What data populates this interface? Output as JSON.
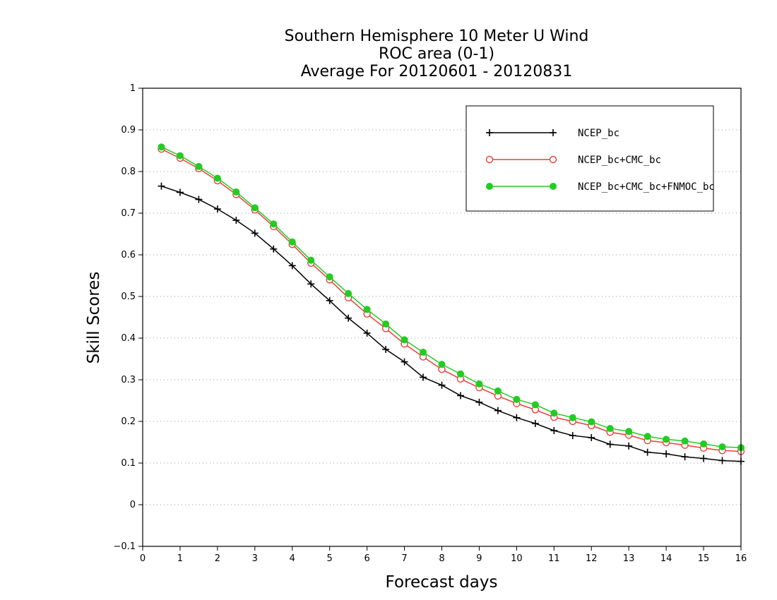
{
  "chart_data": {
    "type": "line",
    "title_lines": [
      "Southern Hemisphere 10 Meter U Wind",
      "ROC area (0-1)",
      "Average For 20120601 - 20120831"
    ],
    "xlabel": "Forecast days",
    "ylabel": "Skill Scores",
    "xlim": [
      0,
      16
    ],
    "ylim": [
      -0.1,
      1
    ],
    "xticks": [
      0,
      1,
      2,
      3,
      4,
      5,
      6,
      7,
      8,
      9,
      10,
      11,
      12,
      13,
      14,
      15,
      16
    ],
    "yticks": [
      -0.1,
      0,
      0.1,
      0.2,
      0.3,
      0.4,
      0.5,
      0.6,
      0.7,
      0.8,
      0.9,
      1
    ],
    "grid": "horizontal-dotted",
    "legend_position": "top-right",
    "x": [
      0.5,
      1,
      1.5,
      2,
      2.5,
      3,
      3.5,
      4,
      4.5,
      5,
      5.5,
      6,
      6.5,
      7,
      7.5,
      8,
      8.5,
      9,
      9.5,
      10,
      10.5,
      11,
      11.5,
      12,
      12.5,
      13,
      13.5,
      14,
      14.5,
      15,
      15.5,
      16
    ],
    "series": [
      {
        "name": "NCEP_bc",
        "color": "#000000",
        "marker": "plus",
        "values": [
          0.765,
          0.75,
          0.733,
          0.71,
          0.683,
          0.652,
          0.614,
          0.574,
          0.53,
          0.49,
          0.448,
          0.412,
          0.373,
          0.343,
          0.306,
          0.287,
          0.262,
          0.246,
          0.226,
          0.209,
          0.195,
          0.178,
          0.166,
          0.161,
          0.145,
          0.141,
          0.126,
          0.122,
          0.115,
          0.111,
          0.106,
          0.104
        ]
      },
      {
        "name": "NCEP_bc+CMC_bc",
        "color": "#e8403a",
        "marker": "open-circle",
        "values": [
          0.854,
          0.832,
          0.807,
          0.778,
          0.745,
          0.708,
          0.668,
          0.625,
          0.58,
          0.54,
          0.497,
          0.458,
          0.423,
          0.386,
          0.355,
          0.325,
          0.302,
          0.281,
          0.261,
          0.243,
          0.228,
          0.21,
          0.2,
          0.19,
          0.174,
          0.167,
          0.154,
          0.149,
          0.143,
          0.136,
          0.13,
          0.128
        ]
      },
      {
        "name": "NCEP_bc+CMC_bc+FNMOC_bc",
        "color": "#22cc22",
        "marker": "filled-circle",
        "values": [
          0.859,
          0.838,
          0.812,
          0.784,
          0.751,
          0.713,
          0.674,
          0.631,
          0.587,
          0.547,
          0.507,
          0.469,
          0.434,
          0.396,
          0.366,
          0.337,
          0.314,
          0.29,
          0.273,
          0.253,
          0.24,
          0.22,
          0.209,
          0.199,
          0.183,
          0.176,
          0.164,
          0.157,
          0.153,
          0.146,
          0.139,
          0.137
        ]
      }
    ]
  }
}
